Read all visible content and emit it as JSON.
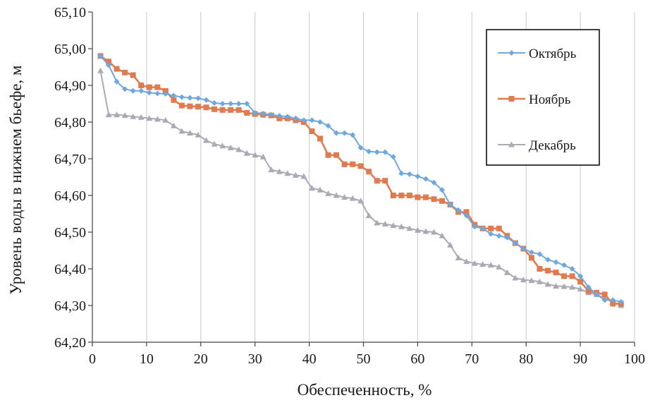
{
  "chart_data": {
    "type": "line",
    "title": "",
    "xlabel": "Обеспеченность, %",
    "ylabel": "Уровень воды в нижнем бьефе, м",
    "xlim": [
      0,
      100
    ],
    "ylim": [
      64.2,
      65.1
    ],
    "x_ticks": [
      0,
      10,
      20,
      30,
      40,
      50,
      60,
      70,
      80,
      90,
      100
    ],
    "x_tick_labels": [
      "0",
      "10",
      "20",
      "30",
      "40",
      "50",
      "60",
      "70",
      "80",
      "90",
      "100"
    ],
    "y_ticks": [
      64.2,
      64.3,
      64.4,
      64.5,
      64.6,
      64.7,
      64.8,
      64.9,
      65.0,
      65.1
    ],
    "y_tick_labels": [
      "64,20",
      "64,30",
      "64,40",
      "64,50",
      "64,60",
      "64,70",
      "64,80",
      "64,90",
      "65,00",
      "65,10"
    ],
    "grid": "vertical",
    "legend_position": "top-right",
    "series": [
      {
        "name": "Октябрь",
        "color": "#6fa8dc",
        "marker": "diamond",
        "x": [
          1.5,
          3,
          4.5,
          6,
          7.5,
          9,
          10.5,
          12,
          13.5,
          15,
          16.5,
          18,
          19.5,
          21,
          22.5,
          24,
          25.5,
          27,
          28.5,
          30,
          31.5,
          33,
          34.5,
          36,
          37.5,
          39,
          40.5,
          42,
          43.5,
          45,
          46.5,
          48,
          49.5,
          51,
          52.5,
          54,
          55.5,
          57,
          58.5,
          60,
          61.5,
          63,
          64.5,
          66,
          67.5,
          69,
          70.5,
          72,
          73.5,
          75,
          76.5,
          78,
          79.5,
          81,
          82.5,
          84,
          85.5,
          87,
          88.5,
          90,
          91.5,
          93,
          94.5,
          96,
          97.5
        ],
        "y": [
          64.98,
          64.955,
          64.91,
          64.89,
          64.885,
          64.885,
          64.88,
          64.878,
          64.877,
          64.872,
          64.868,
          64.866,
          64.865,
          64.86,
          64.852,
          64.85,
          64.85,
          64.85,
          64.85,
          64.825,
          64.823,
          64.82,
          64.817,
          64.815,
          64.81,
          64.805,
          64.805,
          64.8,
          64.79,
          64.77,
          64.77,
          64.765,
          64.73,
          64.72,
          64.718,
          64.718,
          64.705,
          64.66,
          64.658,
          64.652,
          64.645,
          64.635,
          64.615,
          64.575,
          64.56,
          64.545,
          64.515,
          64.51,
          64.495,
          64.49,
          64.485,
          64.47,
          64.455,
          64.445,
          64.44,
          64.425,
          64.418,
          64.41,
          64.4,
          64.38,
          64.35,
          64.33,
          64.315,
          64.315,
          64.31
        ]
      },
      {
        "name": "Ноябрь",
        "color": "#e07b4f",
        "marker": "square",
        "x": [
          1.5,
          3,
          4.5,
          6,
          7.5,
          9,
          10.5,
          12,
          13.5,
          15,
          16.5,
          18,
          19.5,
          21,
          22.5,
          24,
          25.5,
          27,
          28.5,
          30,
          31.5,
          33,
          34.5,
          36,
          37.5,
          39,
          40.5,
          42,
          43.5,
          45,
          46.5,
          48,
          49.5,
          51,
          52.5,
          54,
          55.5,
          57,
          58.5,
          60,
          61.5,
          63,
          64.5,
          66,
          67.5,
          69,
          70.5,
          72,
          73.5,
          75,
          76.5,
          78,
          79.5,
          81,
          82.5,
          84,
          85.5,
          87,
          88.5,
          90,
          91.5,
          93,
          94.5,
          96,
          97.5
        ],
        "y": [
          64.98,
          64.965,
          64.945,
          64.935,
          64.928,
          64.9,
          64.895,
          64.895,
          64.885,
          64.86,
          64.845,
          64.843,
          64.842,
          64.84,
          64.835,
          64.833,
          64.833,
          64.833,
          64.825,
          64.822,
          64.82,
          64.818,
          64.81,
          64.81,
          64.805,
          64.8,
          64.775,
          64.755,
          64.71,
          64.71,
          64.685,
          64.685,
          64.68,
          64.665,
          64.64,
          64.64,
          64.6,
          64.6,
          64.6,
          64.595,
          64.595,
          64.59,
          64.585,
          64.575,
          64.555,
          64.555,
          64.52,
          64.51,
          64.51,
          64.51,
          64.49,
          64.47,
          64.455,
          64.43,
          64.4,
          64.395,
          64.39,
          64.38,
          64.38,
          64.365,
          64.34,
          64.335,
          64.33,
          64.305,
          64.305
        ]
      },
      {
        "name": "Декабрь",
        "color": "#aaaab6",
        "marker": "triangle",
        "x": [
          1.5,
          3,
          4.5,
          6,
          7.5,
          9,
          10.5,
          12,
          13.5,
          15,
          16.5,
          18,
          19.5,
          21,
          22.5,
          24,
          25.5,
          27,
          28.5,
          30,
          31.5,
          33,
          34.5,
          36,
          37.5,
          39,
          40.5,
          42,
          43.5,
          45,
          46.5,
          48,
          49.5,
          51,
          52.5,
          54,
          55.5,
          57,
          58.5,
          60,
          61.5,
          63,
          64.5,
          66,
          67.5,
          69,
          70.5,
          72,
          73.5,
          75,
          76.5,
          78,
          79.5,
          81,
          82.5,
          84,
          85.5,
          87,
          88.5,
          90,
          91.5,
          93,
          94.5,
          96,
          97.5
        ],
        "y": [
          64.94,
          64.82,
          64.82,
          64.818,
          64.815,
          64.813,
          64.81,
          64.808,
          64.805,
          64.79,
          64.775,
          64.77,
          64.765,
          64.75,
          64.74,
          64.735,
          64.73,
          64.725,
          64.715,
          64.71,
          64.705,
          64.67,
          64.665,
          64.66,
          64.655,
          64.652,
          64.62,
          64.615,
          64.605,
          64.6,
          64.595,
          64.592,
          64.585,
          64.545,
          64.525,
          64.522,
          64.518,
          64.515,
          64.51,
          64.505,
          64.502,
          64.5,
          64.49,
          64.465,
          64.43,
          64.42,
          64.415,
          64.412,
          64.41,
          64.405,
          64.39,
          64.375,
          64.37,
          64.368,
          64.365,
          64.358,
          64.353,
          64.352,
          64.35,
          64.345,
          64.335,
          64.33,
          64.32,
          64.31,
          64.3
        ]
      }
    ]
  }
}
